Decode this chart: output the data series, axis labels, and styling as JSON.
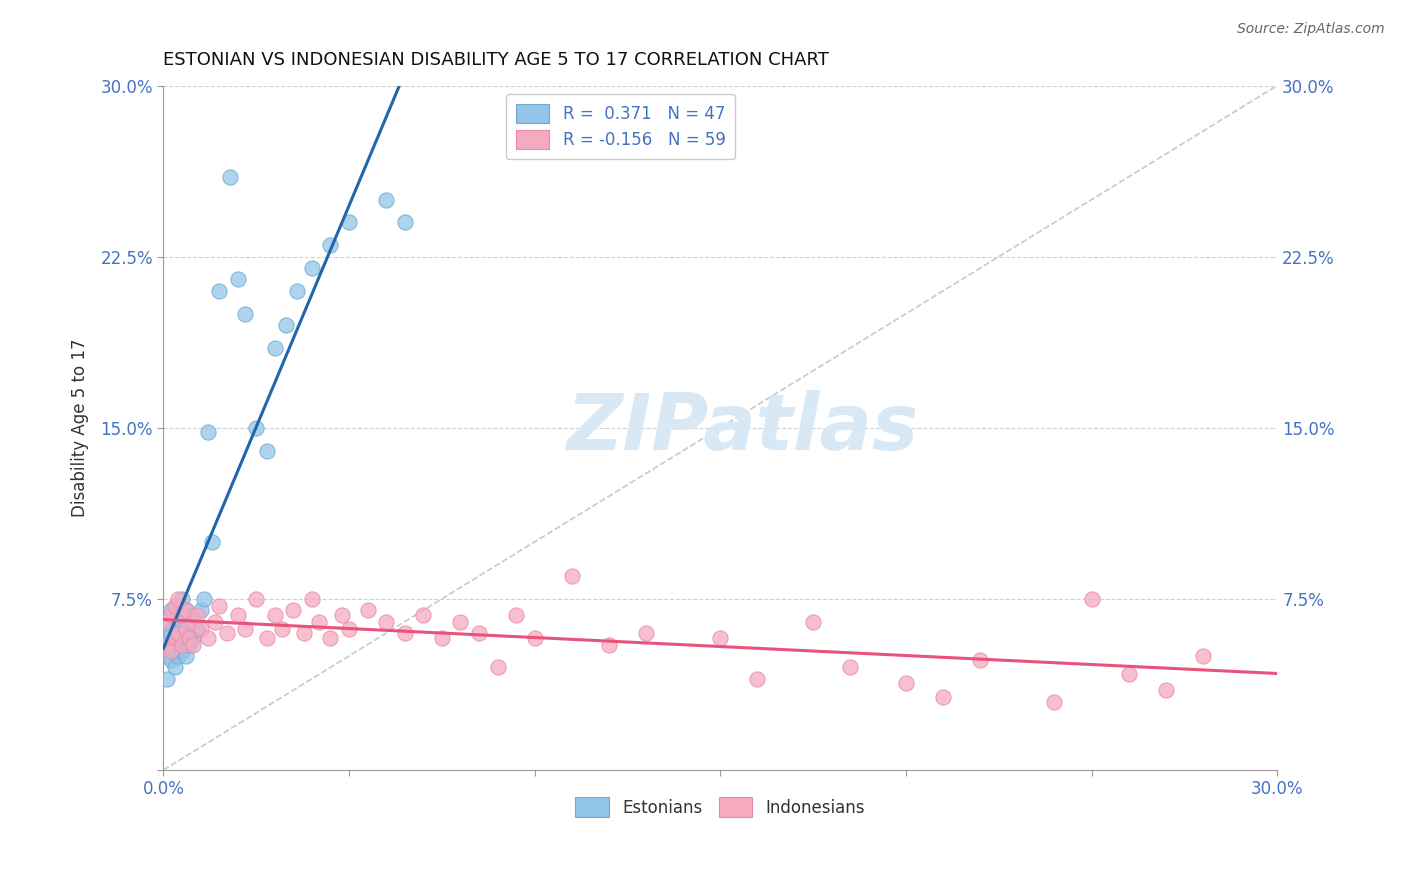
{
  "title": "ESTONIAN VS INDONESIAN DISABILITY AGE 5 TO 17 CORRELATION CHART",
  "source": "Source: ZipAtlas.com",
  "ylabel": "Disability Age 5 to 17",
  "xlim": [
    0.0,
    0.3
  ],
  "ylim": [
    0.0,
    0.3
  ],
  "blue_color": "#92C5E8",
  "blue_edge_color": "#6AAAD4",
  "pink_color": "#F5AABF",
  "pink_edge_color": "#E88AAA",
  "blue_line_color": "#2166AC",
  "pink_line_color": "#E8537A",
  "grid_color": "#CCCCCC",
  "diag_color": "#BBBBBB",
  "tick_color": "#4472C4",
  "watermark_color": "#D8E8F5",
  "estonian_x": [
    0.001,
    0.001,
    0.001,
    0.001,
    0.001,
    0.002,
    0.002,
    0.002,
    0.002,
    0.003,
    0.003,
    0.003,
    0.003,
    0.004,
    0.004,
    0.004,
    0.004,
    0.005,
    0.005,
    0.005,
    0.005,
    0.006,
    0.006,
    0.006,
    0.007,
    0.007,
    0.008,
    0.008,
    0.009,
    0.01,
    0.011,
    0.012,
    0.013,
    0.015,
    0.018,
    0.02,
    0.022,
    0.025,
    0.028,
    0.03,
    0.033,
    0.036,
    0.04,
    0.045,
    0.05,
    0.06,
    0.065
  ],
  "estonian_y": [
    0.05,
    0.055,
    0.06,
    0.065,
    0.04,
    0.055,
    0.06,
    0.048,
    0.07,
    0.052,
    0.058,
    0.065,
    0.045,
    0.055,
    0.06,
    0.068,
    0.05,
    0.052,
    0.058,
    0.065,
    0.075,
    0.05,
    0.06,
    0.07,
    0.055,
    0.065,
    0.058,
    0.068,
    0.062,
    0.07,
    0.075,
    0.148,
    0.1,
    0.21,
    0.26,
    0.215,
    0.2,
    0.15,
    0.14,
    0.185,
    0.195,
    0.21,
    0.22,
    0.23,
    0.24,
    0.25,
    0.24
  ],
  "indonesian_x": [
    0.001,
    0.001,
    0.002,
    0.002,
    0.003,
    0.003,
    0.004,
    0.004,
    0.005,
    0.005,
    0.006,
    0.006,
    0.007,
    0.008,
    0.008,
    0.009,
    0.01,
    0.012,
    0.014,
    0.015,
    0.017,
    0.02,
    0.022,
    0.025,
    0.028,
    0.03,
    0.032,
    0.035,
    0.038,
    0.04,
    0.042,
    0.045,
    0.048,
    0.05,
    0.055,
    0.06,
    0.065,
    0.07,
    0.075,
    0.08,
    0.085,
    0.09,
    0.095,
    0.1,
    0.11,
    0.12,
    0.13,
    0.15,
    0.16,
    0.175,
    0.185,
    0.2,
    0.21,
    0.22,
    0.24,
    0.25,
    0.26,
    0.27,
    0.28
  ],
  "indonesian_y": [
    0.055,
    0.065,
    0.052,
    0.068,
    0.058,
    0.072,
    0.06,
    0.075,
    0.055,
    0.068,
    0.062,
    0.07,
    0.058,
    0.065,
    0.055,
    0.068,
    0.062,
    0.058,
    0.065,
    0.072,
    0.06,
    0.068,
    0.062,
    0.075,
    0.058,
    0.068,
    0.062,
    0.07,
    0.06,
    0.075,
    0.065,
    0.058,
    0.068,
    0.062,
    0.07,
    0.065,
    0.06,
    0.068,
    0.058,
    0.065,
    0.06,
    0.045,
    0.068,
    0.058,
    0.085,
    0.055,
    0.06,
    0.058,
    0.04,
    0.065,
    0.045,
    0.038,
    0.032,
    0.048,
    0.03,
    0.075,
    0.042,
    0.035,
    0.05
  ]
}
